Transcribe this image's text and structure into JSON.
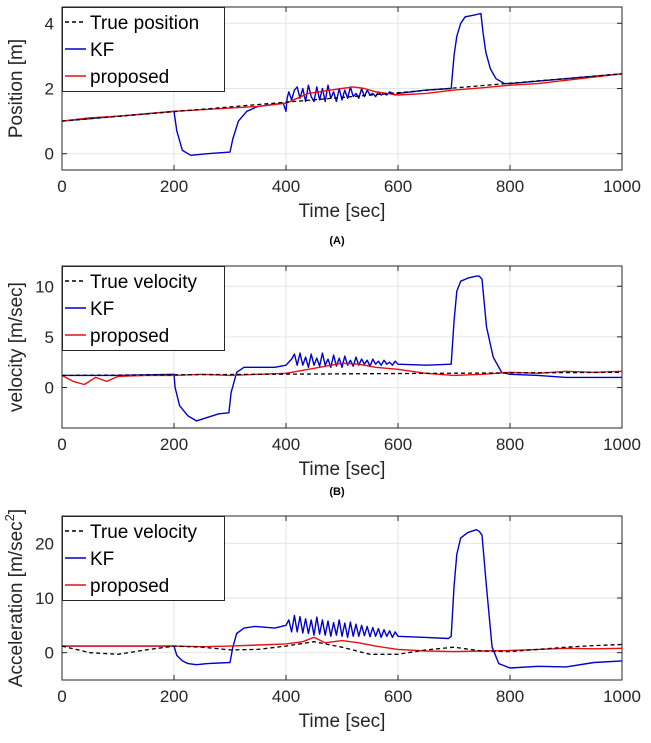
{
  "chart_data": [
    {
      "type": "line",
      "caption": "(A)",
      "xlabel": "Time [sec]",
      "ylabel": "Position [m]",
      "xlim": [
        0,
        1000
      ],
      "ylim": [
        -0.5,
        4.5
      ],
      "xticks": [
        0,
        200,
        400,
        600,
        800,
        1000
      ],
      "yticks": [
        0,
        2,
        4
      ],
      "grid": true,
      "legend_position": "top-left",
      "series": [
        {
          "name": "True position",
          "color": "#000000",
          "style": "dashed",
          "x": [
            0,
            1000
          ],
          "y": [
            1.0,
            2.45
          ]
        },
        {
          "name": "KF",
          "color": "#0000cc",
          "style": "solid",
          "x": [
            0,
            100,
            200,
            205,
            215,
            230,
            260,
            300,
            305,
            315,
            330,
            350,
            395,
            400,
            402,
            405,
            410,
            415,
            420,
            425,
            430,
            435,
            440,
            445,
            450,
            455,
            460,
            465,
            470,
            475,
            480,
            485,
            490,
            495,
            500,
            505,
            510,
            515,
            520,
            525,
            530,
            535,
            540,
            545,
            550,
            555,
            560,
            565,
            570,
            575,
            580,
            585,
            590,
            595,
            600,
            650,
            695,
            700,
            705,
            712,
            720,
            735,
            748,
            752,
            757,
            765,
            775,
            790,
            800,
            900,
            1000
          ],
          "y": [
            1.0,
            1.15,
            1.3,
            0.7,
            0.1,
            -0.05,
            0.0,
            0.05,
            0.45,
            1.0,
            1.3,
            1.45,
            1.55,
            1.3,
            1.7,
            1.9,
            1.65,
            1.95,
            2.05,
            1.7,
            2.0,
            1.6,
            2.1,
            1.75,
            1.6,
            2.05,
            1.65,
            2.0,
            1.6,
            2.1,
            1.7,
            1.9,
            1.6,
            2.0,
            1.65,
            1.95,
            1.7,
            2.05,
            1.75,
            1.85,
            1.7,
            2.0,
            1.75,
            1.95,
            1.8,
            1.85,
            1.75,
            1.9,
            1.8,
            1.85,
            1.8,
            1.9,
            1.85,
            1.8,
            1.85,
            1.95,
            2.0,
            3.0,
            3.6,
            4.0,
            4.2,
            4.25,
            4.3,
            3.7,
            3.1,
            2.6,
            2.3,
            2.15,
            2.15,
            2.3,
            2.45
          ]
        },
        {
          "name": "proposed",
          "color": "#e81010",
          "style": "solid",
          "x": [
            0,
            50,
            100,
            150,
            200,
            250,
            300,
            350,
            400,
            420,
            440,
            460,
            480,
            500,
            520,
            540,
            560,
            580,
            600,
            650,
            700,
            750,
            800,
            850,
            900,
            950,
            1000
          ],
          "y": [
            1.0,
            1.1,
            1.15,
            1.22,
            1.3,
            1.35,
            1.4,
            1.45,
            1.55,
            1.7,
            1.85,
            1.9,
            1.95,
            2.0,
            2.05,
            2.0,
            1.9,
            1.85,
            1.8,
            1.85,
            1.95,
            2.02,
            2.1,
            2.15,
            2.25,
            2.35,
            2.45
          ]
        }
      ]
    },
    {
      "type": "line",
      "caption": "(B)",
      "xlabel": "Time [sec]",
      "ylabel": "velocity [m/sec]",
      "xlim": [
        0,
        1000
      ],
      "ylim": [
        -4,
        12
      ],
      "xticks": [
        0,
        200,
        400,
        600,
        800,
        1000
      ],
      "yticks": [
        0,
        5,
        10
      ],
      "grid": true,
      "legend_position": "top-left",
      "series": [
        {
          "name": "True velocity",
          "color": "#000000",
          "style": "dashed",
          "x": [
            0,
            1000
          ],
          "y": [
            1.2,
            1.5
          ]
        },
        {
          "name": "KF",
          "color": "#0000cc",
          "style": "solid",
          "x": [
            0,
            100,
            200,
            202,
            210,
            225,
            240,
            280,
            298,
            302,
            312,
            325,
            345,
            380,
            400,
            410,
            415,
            420,
            425,
            430,
            435,
            440,
            445,
            450,
            455,
            460,
            465,
            470,
            475,
            480,
            485,
            490,
            495,
            500,
            505,
            510,
            515,
            520,
            525,
            530,
            535,
            540,
            545,
            550,
            555,
            560,
            565,
            570,
            575,
            580,
            585,
            590,
            595,
            600,
            650,
            695,
            700,
            705,
            712,
            725,
            740,
            745,
            750,
            758,
            770,
            785,
            800,
            850,
            900,
            1000
          ],
          "y": [
            1.2,
            1.2,
            1.3,
            0.0,
            -1.8,
            -2.8,
            -3.3,
            -2.6,
            -2.5,
            -0.5,
            1.5,
            2.0,
            2.0,
            2.0,
            2.2,
            2.8,
            3.3,
            2.2,
            3.4,
            2.2,
            3.0,
            2.0,
            3.3,
            2.2,
            2.9,
            2.1,
            3.4,
            2.2,
            2.8,
            2.0,
            3.2,
            2.1,
            2.9,
            2.0,
            3.1,
            2.2,
            2.7,
            2.1,
            3.0,
            2.2,
            2.8,
            2.3,
            2.7,
            2.1,
            2.8,
            2.3,
            2.6,
            2.2,
            2.7,
            2.3,
            2.5,
            2.2,
            2.6,
            2.3,
            2.2,
            2.3,
            6.5,
            9.5,
            10.5,
            10.8,
            11.0,
            11.0,
            10.7,
            6.0,
            3.0,
            1.5,
            1.3,
            1.2,
            1.0,
            1.0
          ]
        },
        {
          "name": "proposed",
          "color": "#e81010",
          "style": "solid",
          "x": [
            0,
            20,
            40,
            60,
            80,
            100,
            150,
            200,
            250,
            300,
            350,
            400,
            450,
            500,
            530,
            560,
            600,
            650,
            700,
            750,
            800,
            850,
            900,
            950,
            1000
          ],
          "y": [
            1.2,
            0.6,
            0.3,
            1.0,
            0.6,
            1.1,
            1.2,
            1.2,
            1.3,
            1.2,
            1.3,
            1.4,
            1.9,
            2.4,
            2.3,
            2.0,
            1.8,
            1.4,
            1.2,
            1.3,
            1.5,
            1.4,
            1.6,
            1.5,
            1.6
          ]
        }
      ]
    },
    {
      "type": "line",
      "caption": "",
      "xlabel": "Time [sec]",
      "ylabel": "Acceleration [m/sec",
      "ylabel_superscript": "2",
      "ylabel_close": "]",
      "xlim": [
        0,
        1000
      ],
      "ylim": [
        -5,
        25
      ],
      "xticks": [
        0,
        200,
        400,
        600,
        800,
        1000
      ],
      "yticks": [
        0,
        10,
        20
      ],
      "grid": true,
      "legend_position": "top-left",
      "series": [
        {
          "name": "True velocity",
          "color": "#000000",
          "style": "dashed",
          "x": [
            0,
            50,
            100,
            150,
            200,
            250,
            300,
            350,
            400,
            450,
            500,
            550,
            600,
            650,
            700,
            750,
            800,
            850,
            900,
            950,
            1000
          ],
          "y": [
            1.2,
            0.0,
            -0.3,
            0.5,
            1.2,
            1.0,
            0.5,
            0.6,
            1.2,
            2.0,
            1.0,
            -0.3,
            -0.3,
            0.5,
            1.0,
            0.3,
            0.2,
            0.6,
            1.0,
            1.3,
            1.5
          ]
        },
        {
          "name": "KF",
          "color": "#0000cc",
          "style": "solid",
          "x": [
            0,
            100,
            200,
            205,
            215,
            225,
            240,
            260,
            300,
            305,
            312,
            325,
            345,
            380,
            400,
            405,
            410,
            415,
            420,
            425,
            430,
            435,
            440,
            445,
            450,
            455,
            460,
            465,
            470,
            475,
            480,
            485,
            490,
            495,
            500,
            505,
            510,
            515,
            520,
            525,
            530,
            535,
            540,
            545,
            550,
            555,
            560,
            565,
            570,
            575,
            580,
            585,
            590,
            595,
            600,
            650,
            690,
            695,
            700,
            705,
            712,
            725,
            740,
            745,
            750,
            758,
            768,
            780,
            800,
            850,
            900,
            950,
            1000
          ],
          "y": [
            1.2,
            1.2,
            1.2,
            -0.5,
            -1.5,
            -2.0,
            -2.2,
            -2.0,
            -1.8,
            1.0,
            3.5,
            4.5,
            4.8,
            4.5,
            5.0,
            6.0,
            3.8,
            6.8,
            3.8,
            6.6,
            3.6,
            6.2,
            3.5,
            6.0,
            3.2,
            6.5,
            3.4,
            6.0,
            3.2,
            5.8,
            3.0,
            5.5,
            3.2,
            6.0,
            3.0,
            5.4,
            2.8,
            5.6,
            3.0,
            5.2,
            3.0,
            5.0,
            3.1,
            4.8,
            2.9,
            4.6,
            3.0,
            4.4,
            2.8,
            4.2,
            3.0,
            4.0,
            2.8,
            3.8,
            3.0,
            2.8,
            2.6,
            3.0,
            12.0,
            18.0,
            21.0,
            22.0,
            22.5,
            22.2,
            21.5,
            12.0,
            1.0,
            -2.0,
            -2.8,
            -2.5,
            -2.6,
            -1.8,
            -1.5
          ]
        },
        {
          "name": "proposed",
          "color": "#e81010",
          "style": "solid",
          "x": [
            0,
            50,
            100,
            150,
            200,
            250,
            300,
            350,
            400,
            430,
            450,
            470,
            500,
            530,
            560,
            600,
            650,
            700,
            750,
            800,
            850,
            900,
            950,
            1000
          ],
          "y": [
            1.2,
            1.2,
            1.2,
            1.2,
            1.2,
            1.1,
            1.2,
            1.4,
            1.6,
            2.0,
            2.8,
            1.8,
            2.2,
            1.8,
            1.2,
            0.6,
            0.3,
            0.2,
            0.3,
            0.4,
            0.6,
            0.8,
            0.7,
            0.8
          ]
        }
      ]
    }
  ]
}
